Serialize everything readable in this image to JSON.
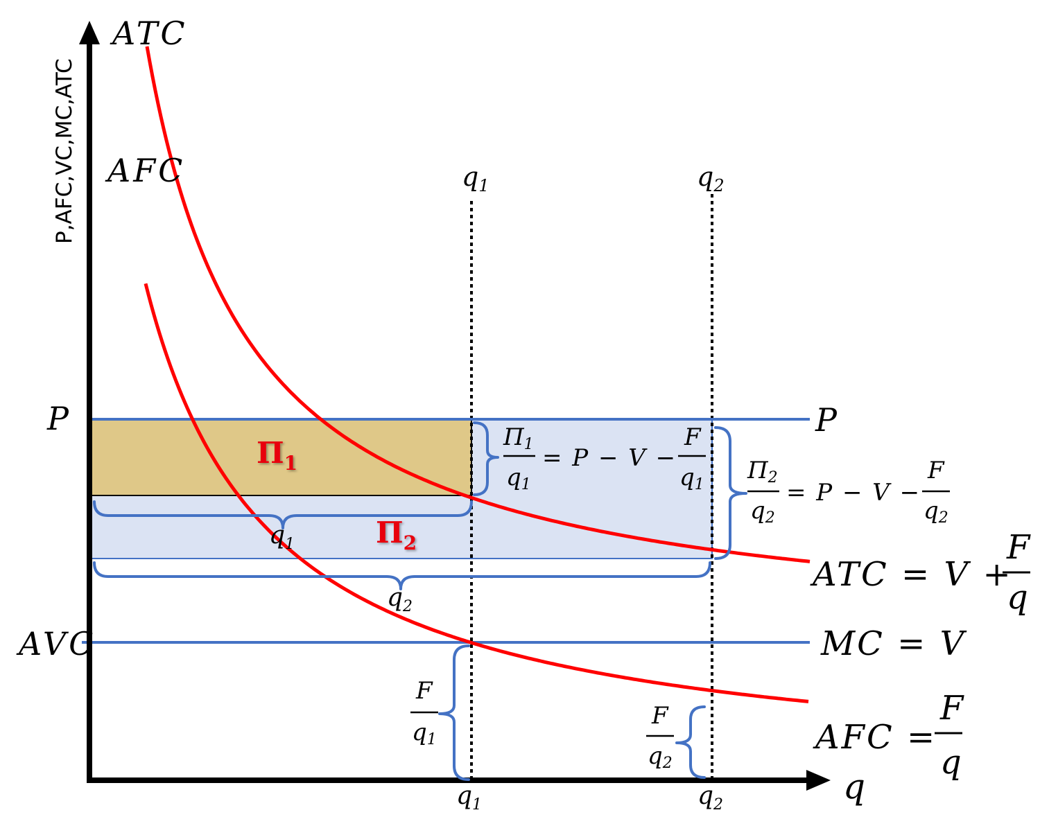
{
  "axes": {
    "y_label": "P,AFC,VC,MC,ATC",
    "x_label": "q"
  },
  "curves": {
    "atc_top": "ATC",
    "afc_top": "AFC",
    "atc_formula": {
      "lhs": "ATC = V +",
      "num": "F",
      "den": "q"
    },
    "afc_formula": {
      "lhs": "AFC =",
      "num": "F",
      "den": "q"
    },
    "mc_formula": "MC = V"
  },
  "price_line": {
    "left": "P",
    "right": "P"
  },
  "avc_label": "AVC",
  "quantities": {
    "q1_top": {
      "base": "q",
      "sub": "1"
    },
    "q2_top": {
      "base": "q",
      "sub": "2"
    },
    "q1_axis": {
      "base": "q",
      "sub": "1"
    },
    "q2_axis": {
      "base": "q",
      "sub": "2"
    },
    "q1_brace": {
      "base": "q",
      "sub": "1"
    },
    "q2_brace": {
      "base": "q",
      "sub": "2"
    }
  },
  "profits": {
    "pi1": {
      "base": "Π",
      "sub": "1"
    },
    "pi2": {
      "base": "Π",
      "sub": "2"
    }
  },
  "equations": {
    "eq1": {
      "num_base": "Π",
      "num_sub": "1",
      "den_base": "q",
      "den_sub": "1",
      "mid": "= P − V −",
      "f_num": "F",
      "f_den_base": "q",
      "f_den_sub": "1"
    },
    "eq2": {
      "num_base": "Π",
      "num_sub": "2",
      "den_base": "q",
      "den_sub": "2",
      "mid": "= P − V −",
      "f_num": "F",
      "f_den_base": "q",
      "f_den_sub": "2"
    }
  },
  "afc_gaps": {
    "gap1": {
      "num": "F",
      "den_base": "q",
      "den_sub": "1"
    },
    "gap2": {
      "num": "F",
      "den_base": "q",
      "den_sub": "2"
    }
  },
  "colors": {
    "axis": "#000000",
    "cost_curve": "#ff0000",
    "line_blue": "#4472c4",
    "pi1_fill": "#dfc888",
    "pi2_fill": "#dbe3f3",
    "pi_label": "#e8000b"
  }
}
